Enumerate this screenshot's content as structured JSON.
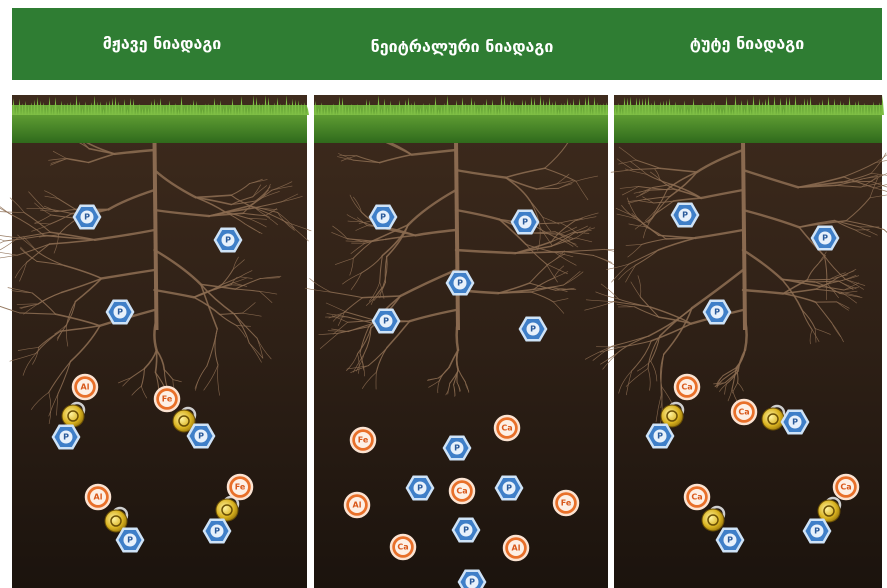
{
  "header": {
    "columns": [
      "მჟავე ნიადაგი",
      "ნეიტრალური ნიადაგი",
      "ტუტე ნიადაგი"
    ]
  },
  "panels": [
    {
      "nodes": [
        {
          "label": "P",
          "shape": "hexagon"
        },
        {
          "label": "P",
          "shape": "hexagon"
        },
        {
          "label": "P",
          "shape": "hexagon"
        },
        {
          "label": "Al",
          "shape": "circle"
        },
        {
          "label": "P",
          "shape": "hexagon"
        },
        {
          "label": "Fe",
          "shape": "circle"
        },
        {
          "label": "P",
          "shape": "hexagon"
        },
        {
          "label": "Al",
          "shape": "circle"
        },
        {
          "label": "P",
          "shape": "hexagon"
        },
        {
          "label": "Fe",
          "shape": "circle"
        },
        {
          "label": "P",
          "shape": "hexagon"
        }
      ]
    },
    {
      "nodes": [
        {
          "label": "P",
          "shape": "hexagon"
        },
        {
          "label": "P",
          "shape": "hexagon"
        },
        {
          "label": "P",
          "shape": "hexagon"
        },
        {
          "label": "P",
          "shape": "hexagon"
        },
        {
          "label": "P",
          "shape": "hexagon"
        },
        {
          "label": "Fe",
          "shape": "circle"
        },
        {
          "label": "P",
          "shape": "hexagon"
        },
        {
          "label": "Ca",
          "shape": "circle"
        },
        {
          "label": "P",
          "shape": "hexagon"
        },
        {
          "label": "Ca",
          "shape": "circle"
        },
        {
          "label": "P",
          "shape": "hexagon"
        },
        {
          "label": "Fe",
          "shape": "circle"
        },
        {
          "label": "Al",
          "shape": "circle"
        },
        {
          "label": "P",
          "shape": "hexagon"
        },
        {
          "label": "Ca",
          "shape": "circle"
        },
        {
          "label": "Al",
          "shape": "circle"
        },
        {
          "label": "P",
          "shape": "hexagon"
        }
      ]
    },
    {
      "nodes": [
        {
          "label": "P",
          "shape": "hexagon"
        },
        {
          "label": "P",
          "shape": "hexagon"
        },
        {
          "label": "P",
          "shape": "hexagon"
        },
        {
          "label": "Ca",
          "shape": "circle"
        },
        {
          "label": "P",
          "shape": "hexagon"
        },
        {
          "label": "Ca",
          "shape": "circle"
        },
        {
          "label": "P",
          "shape": "hexagon"
        },
        {
          "label": "Ca",
          "shape": "circle"
        },
        {
          "label": "P",
          "shape": "hexagon"
        },
        {
          "label": "Ca",
          "shape": "circle"
        },
        {
          "label": "P",
          "shape": "hexagon"
        }
      ]
    }
  ]
}
